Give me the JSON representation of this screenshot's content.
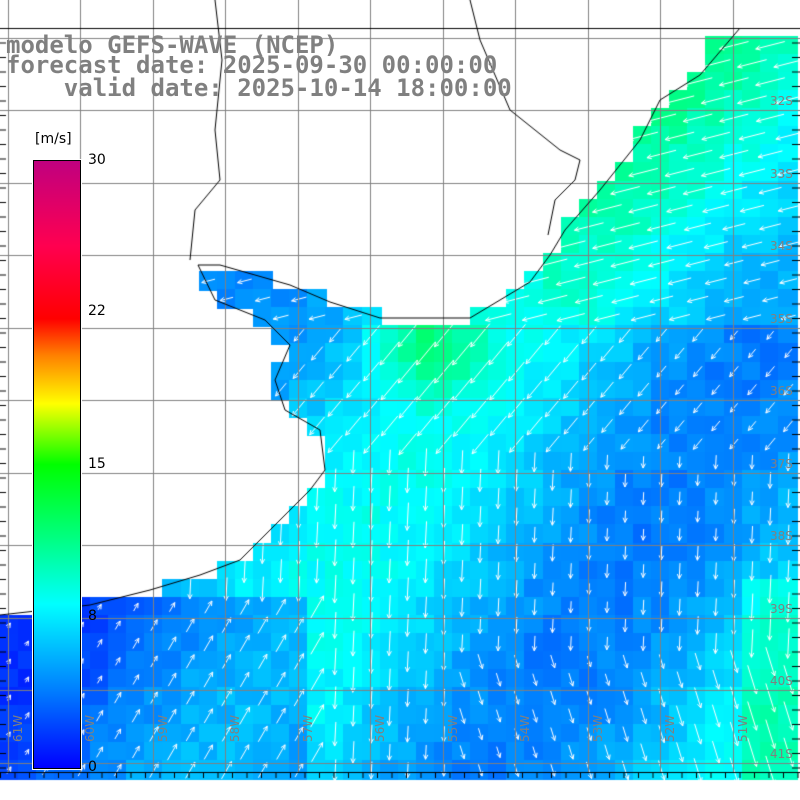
{
  "title": {
    "line1": "modelo GEFS-WAVE (NCEP)",
    "line2": "forecast date: 2025-09-30 00:00:00",
    "line3": "    valid date: 2025-10-14 18:00:00"
  },
  "colorbar": {
    "unit": "[m/s]",
    "labels": [
      "30",
      "22",
      "15",
      "8",
      "0"
    ],
    "range": [
      0,
      30
    ]
  },
  "axes": {
    "longitudes": [
      "61W",
      "60W",
      "59W",
      "58W",
      "57W",
      "56W",
      "55W",
      "54W",
      "53W",
      "52W",
      "51W"
    ],
    "latitudes": [
      "32S",
      "33S",
      "34S",
      "35S",
      "36S",
      "37S",
      "38S",
      "39S",
      "40S",
      "41S"
    ]
  },
  "colors": {
    "land": "#ffffff",
    "grid": "#808080",
    "coast": "#000000",
    "arrow": "#ffffff"
  }
}
